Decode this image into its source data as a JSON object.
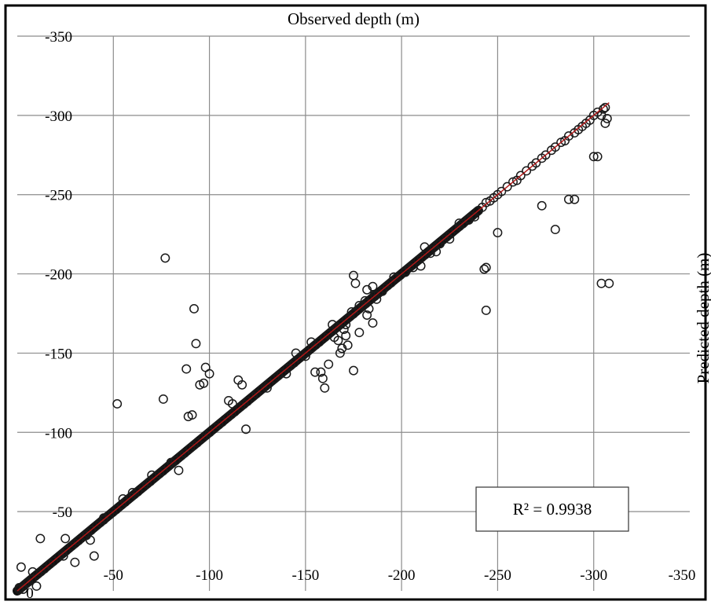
{
  "chart_data": {
    "type": "scatter",
    "title": "",
    "xlabel": "Observed depth (m)",
    "ylabel": "Predicted depth (m)",
    "xlim": [
      0,
      -350
    ],
    "ylim": [
      0,
      -350
    ],
    "x_ticks": [
      "-50",
      "-100",
      "-150",
      "-200",
      "-250",
      "-300",
      "-350"
    ],
    "y_ticks": [
      "-50",
      "-100",
      "-150",
      "-200",
      "-250",
      "-300",
      "-350"
    ],
    "origin_label": "0",
    "grid": true,
    "annotation": "R² = 0.9938",
    "r_squared": 0.9938,
    "fit_line": {
      "from": [
        0,
        0
      ],
      "to": [
        -308,
        -308
      ],
      "color": "#b01818"
    },
    "dense_band": {
      "x_start": 0,
      "x_end": -240
    },
    "sparse_points": [
      [
        -302,
        -302
      ],
      [
        -305,
        -304
      ],
      [
        -300,
        -300
      ],
      [
        -298,
        -297
      ],
      [
        -296,
        -295
      ],
      [
        -294,
        -293
      ],
      [
        -292,
        -291
      ],
      [
        -290,
        -289
      ],
      [
        -287,
        -287
      ],
      [
        -285,
        -284
      ],
      [
        -283,
        -283
      ],
      [
        -280,
        -280
      ],
      [
        -278,
        -278
      ],
      [
        -275,
        -275
      ],
      [
        -273,
        -273
      ],
      [
        -270,
        -270
      ],
      [
        -268,
        -268
      ],
      [
        -265,
        -265
      ],
      [
        -262,
        -262
      ],
      [
        -260,
        -259
      ],
      [
        -258,
        -258
      ],
      [
        -255,
        -255
      ],
      [
        -252,
        -252
      ],
      [
        -250,
        -250
      ],
      [
        -248,
        -248
      ],
      [
        -246,
        -246
      ],
      [
        -244,
        -245
      ],
      [
        -242,
        -242
      ],
      [
        -306,
        -305
      ],
      [
        -307,
        -298
      ],
      [
        -306,
        -295
      ],
      [
        -304,
        -300
      ],
      [
        -300,
        -274
      ],
      [
        -302,
        -274
      ],
      [
        -287,
        -247
      ],
      [
        -290,
        -247
      ],
      [
        -304,
        -194
      ],
      [
        -308,
        -194
      ],
      [
        -273,
        -243
      ],
      [
        -280,
        -228
      ],
      [
        -250,
        -226
      ],
      [
        -244,
        -204
      ],
      [
        -243,
        -203
      ],
      [
        -244,
        -177
      ],
      [
        -77,
        -210
      ],
      [
        -92,
        -178
      ],
      [
        -93,
        -156
      ],
      [
        -88,
        -140
      ],
      [
        -98,
        -141
      ],
      [
        -100,
        -137
      ],
      [
        -97,
        -131
      ],
      [
        -95,
        -130
      ],
      [
        -91,
        -111
      ],
      [
        -89,
        -110
      ],
      [
        -76,
        -121
      ],
      [
        -52,
        -118
      ],
      [
        -115,
        -133
      ],
      [
        -117,
        -130
      ],
      [
        -119,
        -102
      ],
      [
        -175,
        -199
      ],
      [
        -176,
        -194
      ],
      [
        -180,
        -180
      ],
      [
        -171,
        -161
      ],
      [
        -178,
        -180
      ],
      [
        -174,
        -176
      ],
      [
        -158,
        -138
      ],
      [
        -159,
        -134
      ],
      [
        -160,
        -128
      ],
      [
        -155,
        -138
      ],
      [
        -175,
        -139
      ],
      [
        -168,
        -150
      ],
      [
        -162,
        -143
      ],
      [
        -165,
        -160
      ],
      [
        -166,
        -166
      ],
      [
        -164,
        -168
      ],
      [
        -167,
        -158
      ],
      [
        -169,
        -153
      ],
      [
        -171,
        -168
      ],
      [
        -182,
        -174
      ],
      [
        -178,
        -163
      ],
      [
        -181,
        -183
      ],
      [
        -183,
        -178
      ],
      [
        -186,
        -187
      ],
      [
        -185,
        -169
      ],
      [
        -172,
        -155
      ],
      [
        -170,
        -165
      ],
      [
        -185,
        -192
      ],
      [
        -182,
        -190
      ],
      [
        -187,
        -184
      ],
      [
        -190,
        -189
      ],
      [
        -12,
        -33
      ],
      [
        -25,
        -33
      ],
      [
        -40,
        -22
      ],
      [
        -24,
        -22
      ],
      [
        -30,
        -18
      ],
      [
        -5,
        -5
      ],
      [
        -2,
        -15
      ],
      [
        -1,
        -2
      ],
      [
        -3,
        -1
      ],
      [
        -8,
        -12
      ],
      [
        -10,
        -3
      ],
      [
        -36,
        -35
      ],
      [
        -38,
        -32
      ],
      [
        -45,
        -46
      ],
      [
        -55,
        -58
      ],
      [
        -60,
        -62
      ],
      [
        -70,
        -73
      ],
      [
        -80,
        -81
      ],
      [
        -84,
        -76
      ],
      [
        -110,
        -120
      ],
      [
        -112,
        -118
      ],
      [
        -130,
        -128
      ],
      [
        -140,
        -137
      ],
      [
        -145,
        -150
      ],
      [
        -150,
        -148
      ],
      [
        -153,
        -157
      ],
      [
        -210,
        -205
      ],
      [
        -215,
        -213
      ],
      [
        -220,
        -219
      ],
      [
        -225,
        -222
      ],
      [
        -230,
        -232
      ],
      [
        -235,
        -234
      ],
      [
        -238,
        -236
      ],
      [
        -212,
        -217
      ],
      [
        -218,
        -214
      ],
      [
        -206,
        -204
      ],
      [
        -202,
        -201
      ],
      [
        -196,
        -198
      ]
    ]
  }
}
